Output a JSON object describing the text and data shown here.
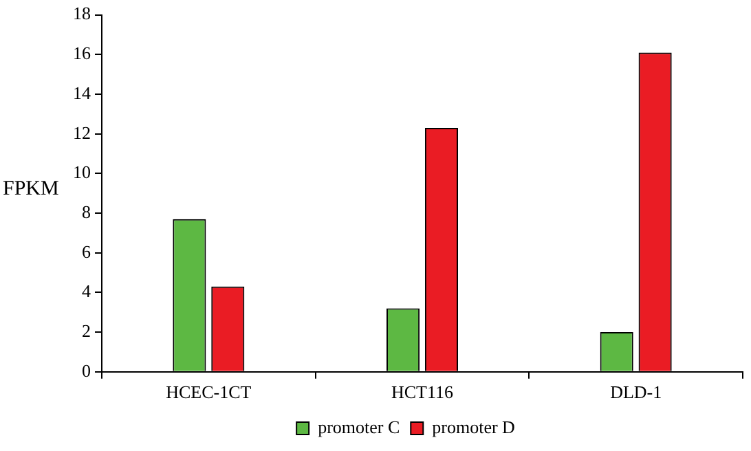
{
  "chart_data": {
    "type": "bar",
    "ylabel": "FPKM",
    "categories": [
      "HCEC-1CT",
      "HCT116",
      "DLD-1"
    ],
    "series": [
      {
        "name": "promoter C",
        "color": "#5db843",
        "values": [
          7.7,
          3.2,
          2.0
        ]
      },
      {
        "name": "promoter D",
        "color": "#ea1c24",
        "values": [
          4.3,
          12.3,
          16.1
        ]
      }
    ],
    "ylim": [
      0,
      18
    ],
    "yticks": [
      0,
      2,
      4,
      6,
      8,
      10,
      12,
      14,
      16,
      18
    ],
    "grid": false,
    "legend": "bottom"
  }
}
